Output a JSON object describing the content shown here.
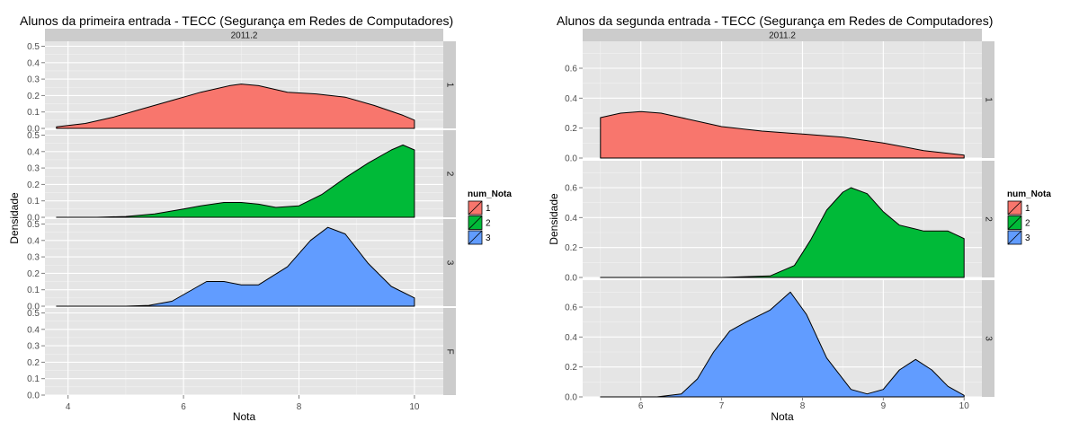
{
  "chart_data": [
    {
      "type": "area",
      "title": "Alunos da primeira entrada -  TECC (Segurança em Redes de Computadores)",
      "strip": "2011.2",
      "xlabel": "Nota",
      "ylabel": "Densidade",
      "xlim": [
        3.6,
        10.5
      ],
      "ylim": [
        0,
        0.53
      ],
      "x_ticks": [
        4,
        6,
        8,
        10
      ],
      "y_ticks": [
        0.0,
        0.1,
        0.2,
        0.3,
        0.4,
        0.5
      ],
      "y_tick_labels": [
        "0.0",
        "0.1",
        "0.2",
        "0.3",
        "0.4",
        "0.5"
      ],
      "facets": [
        {
          "label": "1",
          "series": "1",
          "x": [
            3.8,
            4.3,
            4.8,
            5.3,
            5.8,
            6.3,
            6.8,
            7.0,
            7.3,
            7.8,
            8.3,
            8.8,
            9.3,
            9.8,
            10.0
          ],
          "y": [
            0.01,
            0.03,
            0.07,
            0.12,
            0.17,
            0.22,
            0.26,
            0.27,
            0.26,
            0.22,
            0.21,
            0.19,
            0.14,
            0.08,
            0.05
          ]
        },
        {
          "label": "2",
          "series": "2",
          "x": [
            3.8,
            4.5,
            5.0,
            5.5,
            6.0,
            6.3,
            6.7,
            7.0,
            7.3,
            7.6,
            8.0,
            8.4,
            8.8,
            9.2,
            9.6,
            9.8,
            10.0
          ],
          "y": [
            0.0,
            0.0,
            0.005,
            0.02,
            0.05,
            0.07,
            0.09,
            0.09,
            0.08,
            0.06,
            0.07,
            0.14,
            0.24,
            0.33,
            0.41,
            0.44,
            0.41
          ]
        },
        {
          "label": "3",
          "series": "3",
          "x": [
            3.8,
            5.0,
            5.4,
            5.8,
            6.1,
            6.4,
            6.7,
            7.0,
            7.3,
            7.8,
            8.2,
            8.5,
            8.8,
            9.2,
            9.6,
            10.0
          ],
          "y": [
            0.0,
            0.0,
            0.005,
            0.03,
            0.09,
            0.15,
            0.15,
            0.13,
            0.13,
            0.24,
            0.4,
            0.48,
            0.44,
            0.26,
            0.12,
            0.05
          ]
        },
        {
          "label": "F",
          "series": null,
          "x": [],
          "y": []
        }
      ],
      "legend": {
        "title": "num_Nota",
        "position": "right",
        "entries": [
          "1",
          "2",
          "3"
        ]
      }
    },
    {
      "type": "area",
      "title": "Alunos da segunda entrada -  TECC (Segurança em Redes de Computadores)",
      "strip": "2011.2",
      "xlabel": "Nota",
      "ylabel": "Densidade",
      "xlim": [
        5.28,
        10.22
      ],
      "ylim": [
        0,
        0.78
      ],
      "x_ticks": [
        6,
        7,
        8,
        9,
        10
      ],
      "y_ticks": [
        0.0,
        0.2,
        0.4,
        0.6
      ],
      "y_tick_labels": [
        "0.0",
        "0.2",
        "0.4",
        "0.6"
      ],
      "facets": [
        {
          "label": "1",
          "series": "1",
          "x": [
            5.5,
            5.75,
            6.0,
            6.25,
            6.5,
            6.75,
            7.0,
            7.5,
            8.0,
            8.5,
            9.0,
            9.5,
            10.0
          ],
          "y": [
            0.27,
            0.3,
            0.31,
            0.3,
            0.27,
            0.24,
            0.21,
            0.18,
            0.16,
            0.14,
            0.1,
            0.05,
            0.02
          ]
        },
        {
          "label": "2",
          "series": "2",
          "x": [
            5.5,
            7.0,
            7.6,
            7.9,
            8.1,
            8.3,
            8.5,
            8.6,
            8.8,
            9.0,
            9.2,
            9.5,
            9.8,
            10.0
          ],
          "y": [
            0.0,
            0.0,
            0.01,
            0.08,
            0.25,
            0.45,
            0.57,
            0.6,
            0.56,
            0.44,
            0.35,
            0.31,
            0.31,
            0.26
          ]
        },
        {
          "label": "3",
          "series": "3",
          "x": [
            5.5,
            6.2,
            6.5,
            6.7,
            6.9,
            7.1,
            7.3,
            7.6,
            7.85,
            8.05,
            8.3,
            8.6,
            8.8,
            9.0,
            9.2,
            9.4,
            9.6,
            9.8,
            10.0
          ],
          "y": [
            0.0,
            0.0,
            0.02,
            0.12,
            0.3,
            0.44,
            0.5,
            0.58,
            0.7,
            0.55,
            0.26,
            0.05,
            0.02,
            0.05,
            0.18,
            0.25,
            0.18,
            0.07,
            0.01
          ]
        }
      ],
      "legend": {
        "title": "num_Nota",
        "position": "right",
        "entries": [
          "1",
          "2",
          "3"
        ]
      }
    }
  ],
  "colors": {
    "series": {
      "1": "#f8766d",
      "2": "#00ba38",
      "3": "#619cff"
    },
    "panel_bg": "#e5e5e5",
    "strip_bg": "#cccccc",
    "grid_major": "#ffffff",
    "grid_minor": "#f2f2f2",
    "outline": "#000000"
  }
}
